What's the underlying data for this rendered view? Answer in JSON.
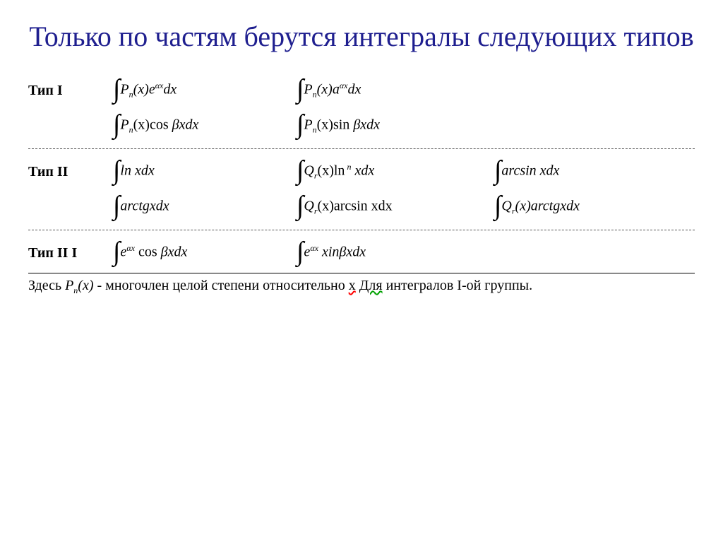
{
  "title": "Только по частям берутся интегралы следующих типов",
  "type1_label": "Тип I",
  "type2_label": "Тип II",
  "type3_label": "Тип II I",
  "t1_f1_a": "P",
  "t1_f1_sub": "n",
  "t1_f1_b": "(x)e",
  "t1_f1_sup": "αx",
  "t1_f1_c": "dx",
  "t1_f2_a": "P",
  "t1_f2_sub": "n",
  "t1_f2_b": "(x)a",
  "t1_f2_sup": "αx",
  "t1_f2_c": "dx",
  "t1_f3_a": "P",
  "t1_f3_sub": "n",
  "t1_f3_b": "(x)cos ",
  "t1_f3_c": "βxdx",
  "t1_f4_a": "P",
  "t1_f4_sub": "n",
  "t1_f4_b": "(x)sin ",
  "t1_f4_c": "βxdx",
  "t2_f1": "ln xdx",
  "t2_f2_a": "Q",
  "t2_f2_sub": "r",
  "t2_f2_b": "(x)ln",
  "t2_f2_sup": " n",
  "t2_f2_c": " xdx",
  "t2_f3": "arcsin xdx",
  "t2_f4": "arctgxdx",
  "t2_f5_a": "Q",
  "t2_f5_sub": "r",
  "t2_f5_b": "(x)arcsin xdx",
  "t2_f6_a": "Q",
  "t2_f6_sub": "r",
  "t2_f6_b": "(x)arctgxdx",
  "t3_f1_a": "e",
  "t3_f1_sup": "αx",
  "t3_f1_b": " cos ",
  "t3_f1_c": "βxdx",
  "t3_f2_a": "e",
  "t3_f2_sup": "αx",
  "t3_f2_b": " xin",
  "t3_f2_c": "βxdx",
  "footer_a": "Здесь ",
  "footer_P": "P",
  "footer_sub": "n",
  "footer_arg": "(x)",
  "footer_b": " - многочлен целой степени относительно ",
  "footer_x": "х",
  "footer_space": " ",
  "footer_c": "Для",
  "footer_d": " интегралов I-ой группы.",
  "colors": {
    "title": "#1f1f8f",
    "text": "#000000",
    "bg": "#ffffff"
  }
}
